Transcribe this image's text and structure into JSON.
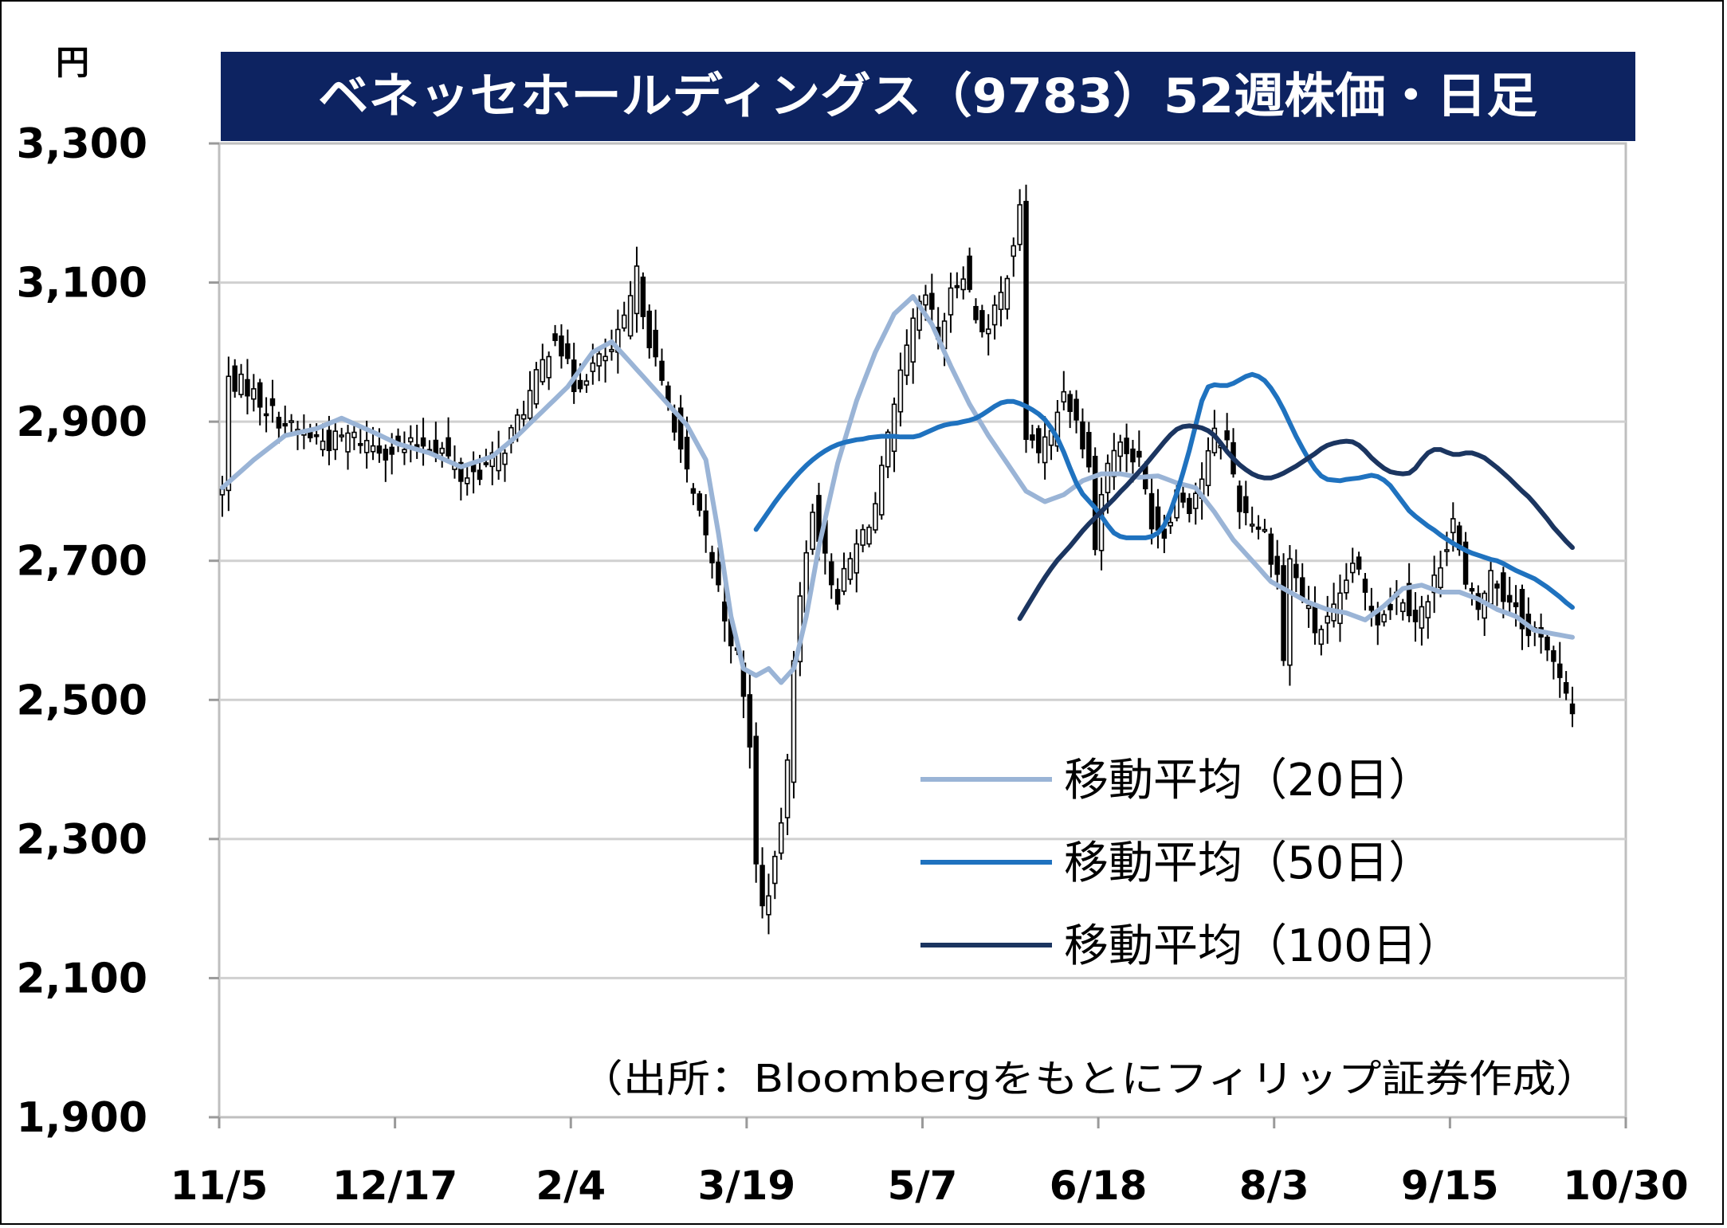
{
  "chart_data": {
    "type": "candlestick-line",
    "title": "ベネッセホールディングス（9783）52週株価・日足",
    "unit_label": "円",
    "source": "（出所：Bloombergをもとにフィリップ証券作成）",
    "ylim": [
      1900,
      3300
    ],
    "yticks": [
      1900,
      2100,
      2300,
      2500,
      2700,
      2900,
      3100,
      3300
    ],
    "ytick_labels": [
      "1,900",
      "2,100",
      "2,300",
      "2,500",
      "2,700",
      "2,900",
      "3,100",
      "3,300"
    ],
    "xticks": [
      {
        "label": "11/5",
        "index": 0
      },
      {
        "label": "12/17",
        "index": 28
      },
      {
        "label": "2/4",
        "index": 56
      },
      {
        "label": "3/19",
        "index": 84
      },
      {
        "label": "5/7",
        "index": 112
      },
      {
        "label": "6/18",
        "index": 140
      },
      {
        "label": "8/3",
        "index": 168
      },
      {
        "label": "9/15",
        "index": 196
      },
      {
        "label": "10/30",
        "index": 224
      }
    ],
    "grid": true,
    "legend_position": "bottom-right",
    "price_anchors": [
      [
        0,
        2800
      ],
      [
        1,
        2960
      ],
      [
        4,
        2950
      ],
      [
        7,
        2920
      ],
      [
        11,
        2890
      ],
      [
        14,
        2880
      ],
      [
        17,
        2870
      ],
      [
        20,
        2880
      ],
      [
        23,
        2870
      ],
      [
        26,
        2860
      ],
      [
        29,
        2860
      ],
      [
        32,
        2870
      ],
      [
        35,
        2860
      ],
      [
        38,
        2820
      ],
      [
        41,
        2830
      ],
      [
        44,
        2850
      ],
      [
        47,
        2900
      ],
      [
        50,
        2960
      ],
      [
        53,
        3030
      ],
      [
        56,
        2950
      ],
      [
        59,
        2980
      ],
      [
        62,
        3000
      ],
      [
        64,
        3040
      ],
      [
        66,
        3110
      ],
      [
        68,
        3020
      ],
      [
        70,
        2950
      ],
      [
        72,
        2900
      ],
      [
        74,
        2820
      ],
      [
        76,
        2760
      ],
      [
        78,
        2700
      ],
      [
        80,
        2620
      ],
      [
        82,
        2560
      ],
      [
        84,
        2440
      ],
      [
        85,
        2260
      ],
      [
        86,
        2200
      ],
      [
        88,
        2260
      ],
      [
        90,
        2400
      ],
      [
        91,
        2570
      ],
      [
        92,
        2640
      ],
      [
        94,
        2780
      ],
      [
        96,
        2700
      ],
      [
        98,
        2650
      ],
      [
        100,
        2700
      ],
      [
        102,
        2740
      ],
      [
        104,
        2780
      ],
      [
        106,
        2870
      ],
      [
        108,
        2960
      ],
      [
        110,
        3040
      ],
      [
        112,
        3080
      ],
      [
        114,
        3020
      ],
      [
        116,
        3080
      ],
      [
        118,
        3120
      ],
      [
        120,
        3050
      ],
      [
        122,
        3030
      ],
      [
        124,
        3080
      ],
      [
        126,
        3160
      ],
      [
        127,
        3200
      ],
      [
        128,
        2880
      ],
      [
        130,
        2860
      ],
      [
        132,
        2880
      ],
      [
        134,
        2950
      ],
      [
        136,
        2900
      ],
      [
        138,
        2850
      ],
      [
        139,
        2720
      ],
      [
        140,
        2800
      ],
      [
        142,
        2870
      ],
      [
        144,
        2860
      ],
      [
        146,
        2840
      ],
      [
        148,
        2760
      ],
      [
        150,
        2740
      ],
      [
        152,
        2800
      ],
      [
        154,
        2780
      ],
      [
        156,
        2820
      ],
      [
        158,
        2880
      ],
      [
        160,
        2870
      ],
      [
        162,
        2780
      ],
      [
        164,
        2760
      ],
      [
        166,
        2740
      ],
      [
        168,
        2680
      ],
      [
        169,
        2560
      ],
      [
        170,
        2700
      ],
      [
        172,
        2650
      ],
      [
        174,
        2600
      ],
      [
        176,
        2610
      ],
      [
        178,
        2640
      ],
      [
        180,
        2700
      ],
      [
        182,
        2650
      ],
      [
        184,
        2620
      ],
      [
        186,
        2640
      ],
      [
        188,
        2650
      ],
      [
        190,
        2620
      ],
      [
        192,
        2640
      ],
      [
        194,
        2700
      ],
      [
        196,
        2760
      ],
      [
        198,
        2660
      ],
      [
        200,
        2630
      ],
      [
        202,
        2680
      ],
      [
        204,
        2650
      ],
      [
        206,
        2640
      ],
      [
        208,
        2590
      ],
      [
        210,
        2600
      ],
      [
        212,
        2550
      ],
      [
        214,
        2500
      ],
      [
        215,
        2480
      ]
    ],
    "sma_anchors": [
      [
        0,
        2805
      ],
      [
        5,
        2845
      ],
      [
        10,
        2880
      ],
      [
        15,
        2890
      ],
      [
        19,
        2905
      ],
      [
        24,
        2885
      ],
      [
        28,
        2868
      ],
      [
        33,
        2855
      ],
      [
        38,
        2835
      ],
      [
        43,
        2850
      ],
      [
        47,
        2880
      ],
      [
        51,
        2915
      ],
      [
        55,
        2950
      ],
      [
        59,
        3000
      ],
      [
        62,
        3015
      ],
      [
        66,
        2975
      ],
      [
        70,
        2935
      ],
      [
        74,
        2895
      ],
      [
        77,
        2845
      ],
      [
        79,
        2740
      ],
      [
        81,
        2620
      ],
      [
        83,
        2545
      ],
      [
        85,
        2535
      ],
      [
        87,
        2545
      ],
      [
        89,
        2525
      ],
      [
        91,
        2545
      ],
      [
        93,
        2620
      ],
      [
        95,
        2720
      ],
      [
        98,
        2840
      ],
      [
        101,
        2930
      ],
      [
        104,
        3000
      ],
      [
        107,
        3055
      ],
      [
        110,
        3080
      ],
      [
        113,
        3040
      ],
      [
        116,
        2980
      ],
      [
        119,
        2925
      ],
      [
        122,
        2880
      ],
      [
        125,
        2840
      ],
      [
        128,
        2800
      ],
      [
        131,
        2785
      ],
      [
        134,
        2795
      ],
      [
        137,
        2815
      ],
      [
        140,
        2825
      ],
      [
        143,
        2825
      ],
      [
        146,
        2820
      ],
      [
        149,
        2822
      ],
      [
        152,
        2812
      ],
      [
        155,
        2805
      ],
      [
        158,
        2770
      ],
      [
        161,
        2730
      ],
      [
        164,
        2700
      ],
      [
        167,
        2670
      ],
      [
        170,
        2655
      ],
      [
        173,
        2640
      ],
      [
        176,
        2630
      ],
      [
        179,
        2625
      ],
      [
        182,
        2615
      ],
      [
        185,
        2635
      ],
      [
        188,
        2660
      ],
      [
        191,
        2665
      ],
      [
        194,
        2655
      ],
      [
        197,
        2655
      ],
      [
        200,
        2645
      ],
      [
        203,
        2630
      ],
      [
        206,
        2620
      ],
      [
        209,
        2600
      ],
      [
        212,
        2595
      ],
      [
        215,
        2590
      ]
    ],
    "series": [
      {
        "name": "移動平均（20日）",
        "color": "#9ab4d6",
        "values": [
          2812,
          2838,
          2857,
          2871,
          2881,
          2889,
          2894,
          2897,
          2899,
          2900,
          2901,
          2903,
          2906,
          2907,
          2907,
          2906,
          2903,
          2899,
          2894,
          2888,
          2882,
          2876,
          2871,
          2866,
          2862,
          2859,
          2856,
          2854,
          2852,
          2851,
          2850,
          2851,
          2853,
          2857,
          2862,
          2868,
          2876,
          2885,
          2894,
          2903,
          2912,
          2921,
          2931,
          2942,
          2955,
          2968,
          2982,
          2996,
          3009,
          3016,
          3017,
          3011,
          2999,
          2984,
          2968,
          2951,
          2928,
          2892,
          2836,
          2760,
          2681,
          2614,
          2566,
          2541,
          2536,
          2538,
          2539,
          2533,
          2530,
          2531,
          2540,
          2565,
          2608,
          2665,
          2728,
          2791,
          2850,
          2905,
          2956,
          3003,
          3041,
          3067,
          3082,
          3084,
          3073,
          3052,
          3027,
          3002,
          2980,
          2960,
          2940,
          2920,
          2898,
          2874,
          2852,
          2834,
          2820,
          2814,
          2814,
          2815,
          2818,
          2822,
          2824,
          2826,
          2825,
          2824,
          2822,
          2821,
          2821,
          2822,
          2823,
          2823,
          2820,
          2813,
          2803,
          2792,
          2781,
          2771,
          2761,
          2748,
          2731,
          2713,
          2696,
          2680,
          2668,
          2660,
          2656,
          2653,
          2649,
          2643,
          2637,
          2633,
          2631,
          2631,
          2630,
          2627,
          2621,
          2614,
          2607,
          2603,
          2602,
          2605,
          2614,
          2630,
          2650,
          2668,
          2676,
          2674,
          2664,
          2655,
          2650,
          2651,
          2656,
          2661,
          2663,
          2660,
          2656,
          2652,
          2649,
          2649,
          2650,
          2649,
          2646,
          2641,
          2633,
          2625,
          2618,
          2612,
          2608,
          2603,
          2598,
          2594,
          2590,
          2588
        ]
      },
      {
        "name": "移動平均（50日）",
        "color": "#1f72bf",
        "values": [
          2745,
          2758,
          2771,
          2784,
          2796,
          2807,
          2818,
          2828,
          2837,
          2845,
          2852,
          2858,
          2863,
          2867,
          2870,
          2872,
          2874,
          2875,
          2877,
          2878,
          2879,
          2879,
          2879,
          2878,
          2878,
          2878,
          2880,
          2884,
          2888,
          2892,
          2895,
          2897,
          2898,
          2900,
          2902,
          2905,
          2910,
          2916,
          2922,
          2927,
          2929,
          2929,
          2926,
          2922,
          2917,
          2911,
          2903,
          2891,
          2876,
          2856,
          2833,
          2812,
          2796,
          2786,
          2776,
          2764,
          2751,
          2740,
          2735,
          2733,
          2733,
          2733,
          2733,
          2735,
          2740,
          2751,
          2771,
          2797,
          2827,
          2859,
          2895,
          2930,
          2950,
          2953,
          2952,
          2952,
          2955,
          2960,
          2965,
          2968,
          2965,
          2959,
          2948,
          2934,
          2917,
          2898,
          2879,
          2862,
          2846,
          2832,
          2822,
          2817,
          2816,
          2815,
          2817,
          2818,
          2819,
          2821,
          2823,
          2821,
          2816,
          2808,
          2796,
          2784,
          2772,
          2764,
          2757,
          2750,
          2744,
          2737,
          2731,
          2725,
          2720,
          2715,
          2711,
          2708,
          2705,
          2702,
          2700,
          2696,
          2691,
          2686,
          2682,
          2678,
          2674,
          2668,
          2662,
          2655,
          2648,
          2640,
          2633
        ]
      },
      {
        "name": "移動平均（100日）",
        "color": "#1b3560",
        "values": [
          2617,
          2632,
          2647,
          2662,
          2676,
          2689,
          2701,
          2711,
          2721,
          2732,
          2743,
          2753,
          2762,
          2771,
          2780,
          2789,
          2799,
          2808,
          2818,
          2828,
          2838,
          2849,
          2860,
          2871,
          2881,
          2889,
          2893,
          2894,
          2893,
          2891,
          2887,
          2880,
          2869,
          2857,
          2847,
          2838,
          2831,
          2825,
          2821,
          2819,
          2819,
          2822,
          2826,
          2831,
          2836,
          2842,
          2848,
          2854,
          2861,
          2866,
          2869,
          2871,
          2872,
          2871,
          2866,
          2858,
          2848,
          2840,
          2833,
          2828,
          2826,
          2825,
          2826,
          2833,
          2845,
          2855,
          2860,
          2860,
          2856,
          2853,
          2853,
          2855,
          2855,
          2852,
          2848,
          2841,
          2834,
          2826,
          2818,
          2809,
          2800,
          2792,
          2782,
          2771,
          2760,
          2748,
          2738,
          2728,
          2719
        ]
      }
    ],
    "legend": [
      "移動平均（20日）",
      "移動平均（50日）",
      "移動平均（100日）"
    ]
  }
}
